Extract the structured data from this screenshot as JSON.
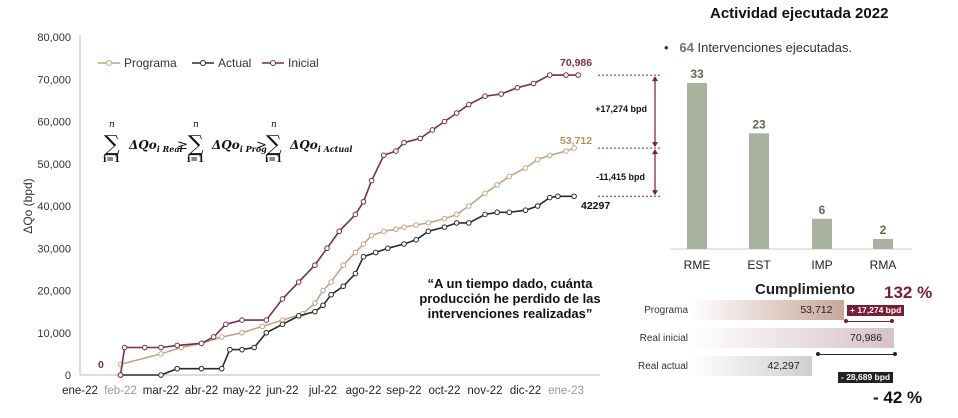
{
  "main_chart": {
    "ylabel": "ΔQo (bpd)",
    "legend": [
      "Programa",
      "Actual",
      "Inicial"
    ],
    "formula_term1": "ΔQo",
    "formula_sub1": "i Real",
    "formula_term2": "ΔQo",
    "formula_sub2": "i Prog",
    "formula_term3": "ΔQo",
    "formula_sub3": "i Actual",
    "quote": [
      "“A un tiempo dado, cuánta",
      "producción he perdido de las",
      "intervenciones realizadas”"
    ],
    "annotations": {
      "inicial_end": "70,986",
      "programa_end": "53,712",
      "actual_end": "42297",
      "gap_top": "+17,274 bpd",
      "gap_bottom": "-11,415 bpd",
      "zero": "0"
    },
    "colors": {
      "programa": "#c4a484",
      "actual": "#2b2b2b",
      "inicial": "#7a2e4a"
    }
  },
  "chart_data": [
    {
      "type": "line",
      "title": "",
      "xlabel": "",
      "ylabel": "ΔQo (bpd)",
      "ylim": [
        0,
        80000
      ],
      "yticks": [
        "0",
        "10,000",
        "20,000",
        "30,000",
        "40,000",
        "50,000",
        "60,000",
        "70,000",
        "80,000"
      ],
      "xticks": [
        "ene-22",
        "feb-22",
        "mar-22",
        "abr-22",
        "may-22",
        "jun-22",
        "jul-22",
        "ago-22",
        "sep-22",
        "oct-22",
        "nov-22",
        "dic-22",
        "ene-23"
      ],
      "x_unit": "months since ene-22",
      "series": [
        {
          "name": "Programa",
          "points": [
            [
              1.0,
              2500
            ],
            [
              2.0,
              5000
            ],
            [
              2.5,
              6500
            ],
            [
              3.0,
              7500
            ],
            [
              3.5,
              9000
            ],
            [
              4.0,
              10000
            ],
            [
              4.5,
              11500
            ],
            [
              5.0,
              13000
            ],
            [
              5.5,
              14500
            ],
            [
              5.8,
              17000
            ],
            [
              6.0,
              20000
            ],
            [
              6.2,
              22000
            ],
            [
              6.5,
              26000
            ],
            [
              6.8,
              29000
            ],
            [
              7.0,
              31000
            ],
            [
              7.2,
              33000
            ],
            [
              7.5,
              34000
            ],
            [
              7.8,
              34500
            ],
            [
              8.0,
              35000
            ],
            [
              8.3,
              35500
            ],
            [
              8.6,
              36000
            ],
            [
              9.0,
              37000
            ],
            [
              9.3,
              38000
            ],
            [
              9.6,
              40000
            ],
            [
              10.0,
              43000
            ],
            [
              10.3,
              45000
            ],
            [
              10.6,
              47000
            ],
            [
              11.0,
              49000
            ],
            [
              11.3,
              51000
            ],
            [
              11.6,
              52000
            ],
            [
              12.0,
              53000
            ],
            [
              12.2,
              53712
            ]
          ]
        },
        {
          "name": "Actual",
          "points": [
            [
              1.0,
              0
            ],
            [
              2.0,
              0
            ],
            [
              2.4,
              1500
            ],
            [
              3.0,
              1500
            ],
            [
              3.5,
              1500
            ],
            [
              3.7,
              6000
            ],
            [
              4.0,
              6000
            ],
            [
              4.3,
              6500
            ],
            [
              4.6,
              10000
            ],
            [
              5.0,
              12000
            ],
            [
              5.4,
              14000
            ],
            [
              5.8,
              15000
            ],
            [
              6.0,
              16500
            ],
            [
              6.2,
              19000
            ],
            [
              6.5,
              21000
            ],
            [
              6.8,
              24000
            ],
            [
              7.0,
              28000
            ],
            [
              7.3,
              29000
            ],
            [
              7.6,
              30000
            ],
            [
              8.0,
              31000
            ],
            [
              8.3,
              32000
            ],
            [
              8.6,
              34000
            ],
            [
              9.0,
              35000
            ],
            [
              9.3,
              36000
            ],
            [
              9.6,
              36000
            ],
            [
              10.0,
              38000
            ],
            [
              10.3,
              38500
            ],
            [
              10.6,
              38500
            ],
            [
              11.0,
              39000
            ],
            [
              11.3,
              40000
            ],
            [
              11.6,
              42000
            ],
            [
              11.8,
              42297
            ],
            [
              12.2,
              42297
            ]
          ]
        },
        {
          "name": "Inicial",
          "points": [
            [
              1.0,
              0
            ],
            [
              1.1,
              6500
            ],
            [
              1.6,
              6500
            ],
            [
              2.0,
              6500
            ],
            [
              2.4,
              7000
            ],
            [
              3.0,
              7500
            ],
            [
              3.3,
              9000
            ],
            [
              3.6,
              12000
            ],
            [
              4.0,
              13000
            ],
            [
              4.6,
              13000
            ],
            [
              5.0,
              18000
            ],
            [
              5.4,
              22000
            ],
            [
              5.8,
              26000
            ],
            [
              6.1,
              30000
            ],
            [
              6.4,
              34000
            ],
            [
              6.8,
              38000
            ],
            [
              7.0,
              41000
            ],
            [
              7.2,
              46000
            ],
            [
              7.5,
              52000
            ],
            [
              7.8,
              53000
            ],
            [
              8.0,
              55000
            ],
            [
              8.4,
              56000
            ],
            [
              8.7,
              58000
            ],
            [
              9.0,
              60000
            ],
            [
              9.3,
              62000
            ],
            [
              9.6,
              64000
            ],
            [
              10.0,
              66000
            ],
            [
              10.4,
              66500
            ],
            [
              10.8,
              68000
            ],
            [
              11.2,
              69000
            ],
            [
              11.6,
              71000
            ],
            [
              12.0,
              70986
            ],
            [
              12.3,
              70986
            ]
          ]
        }
      ]
    },
    {
      "type": "bar",
      "title": "Actividad ejecutada 2022",
      "categories": [
        "RME",
        "EST",
        "IMP",
        "RMA"
      ],
      "values": [
        33,
        23,
        6,
        2
      ]
    },
    {
      "type": "bar",
      "title": "Cumplimiento",
      "categories": [
        "Programa",
        "Real inicial",
        "Real actual"
      ],
      "values": [
        53712,
        70986,
        42297
      ],
      "labels": [
        "53,712",
        "70,986",
        "42,297"
      ]
    }
  ],
  "side": {
    "activity_title": "Actividad ejecutada 2022",
    "bullet_count": "64",
    "bullet_text": " Intervenciones ejecutadas.",
    "cumplimiento_title": "Cumplimiento",
    "cumplimiento_pct": "132 %",
    "bottom_pct": "- 42 %",
    "hbars": [
      {
        "label": "Programa",
        "value": 53712,
        "value_text": "53,712",
        "color": "#c8a79a",
        "tag": "+ 17,274 bpd"
      },
      {
        "label": "Real inicial",
        "value": 70986,
        "value_text": "70,986",
        "color": "#d6c2c8"
      },
      {
        "label": "Real actual",
        "value": 42297,
        "value_text": "42,297",
        "color": "#cfcfcf",
        "tag": "- 28,689 bpd"
      }
    ],
    "bar_color": "#a9b29e"
  }
}
